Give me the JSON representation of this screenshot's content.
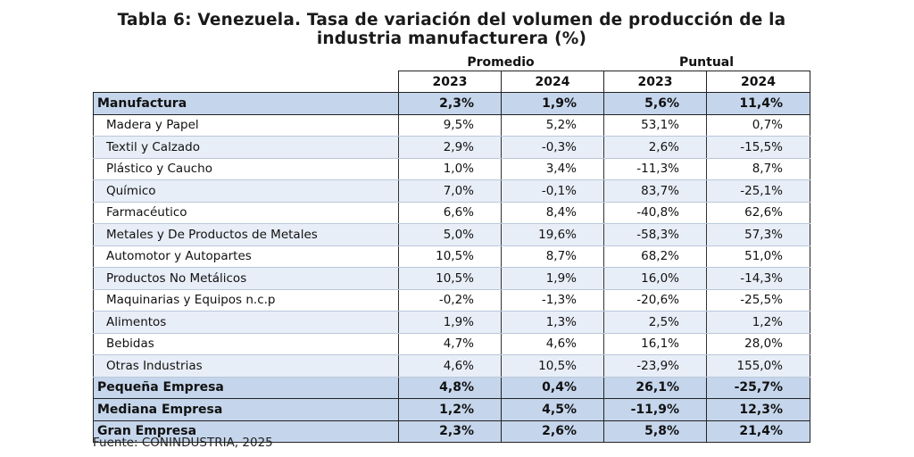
{
  "title_line1": "Tabla 6: Venezuela. Tasa de variación del volumen de producción de la",
  "title_line2": "industria manufacturera (%)",
  "groups": {
    "promedio": "Promedio",
    "puntual": "Puntual"
  },
  "years": [
    "2023",
    "2024",
    "2023",
    "2024"
  ],
  "rows": [
    {
      "type": "summary",
      "name": "Manufactura",
      "values": [
        "2,3%",
        "1,9%",
        "5,6%",
        "11,4%"
      ]
    },
    {
      "type": "sub",
      "name": "Madera y Papel",
      "values": [
        "9,5%",
        "5,2%",
        "53,1%",
        "0,7%"
      ]
    },
    {
      "type": "sub",
      "name": "Textil y Calzado",
      "values": [
        "2,9%",
        "-0,3%",
        "2,6%",
        "-15,5%"
      ]
    },
    {
      "type": "sub",
      "name": "Plástico y Caucho",
      "values": [
        "1,0%",
        "3,4%",
        "-11,3%",
        "8,7%"
      ]
    },
    {
      "type": "sub",
      "name": "Químico",
      "values": [
        "7,0%",
        "-0,1%",
        "83,7%",
        "-25,1%"
      ]
    },
    {
      "type": "sub",
      "name": "Farmacéutico",
      "values": [
        "6,6%",
        "8,4%",
        "-40,8%",
        "62,6%"
      ]
    },
    {
      "type": "sub",
      "name": "Metales y De Productos de Metales",
      "values": [
        "5,0%",
        "19,6%",
        "-58,3%",
        "57,3%"
      ]
    },
    {
      "type": "sub",
      "name": "Automotor y  Autopartes",
      "values": [
        "10,5%",
        "8,7%",
        "68,2%",
        "51,0%"
      ]
    },
    {
      "type": "sub",
      "name": "Productos No Metálicos",
      "values": [
        "10,5%",
        "1,9%",
        "16,0%",
        "-14,3%"
      ]
    },
    {
      "type": "sub",
      "name": "Maquinarias y Equipos n.c.p",
      "values": [
        "-0,2%",
        "-1,3%",
        "-20,6%",
        "-25,5%"
      ]
    },
    {
      "type": "sub",
      "name": "Alimentos",
      "values": [
        "1,9%",
        "1,3%",
        "2,5%",
        "1,2%"
      ]
    },
    {
      "type": "sub",
      "name": "Bebidas",
      "values": [
        "4,7%",
        "4,6%",
        "16,1%",
        "28,0%"
      ]
    },
    {
      "type": "sub",
      "name": "Otras Industrias",
      "values": [
        "4,6%",
        "10,5%",
        "-23,9%",
        "155,0%"
      ]
    },
    {
      "type": "summary",
      "name": "Pequeña Empresa",
      "values": [
        "4,8%",
        "0,4%",
        "26,1%",
        "-25,7%"
      ]
    },
    {
      "type": "summary",
      "name": "Mediana Empresa",
      "values": [
        "1,2%",
        "4,5%",
        "-11,9%",
        "12,3%"
      ]
    },
    {
      "type": "summary",
      "name": "Gran Empresa",
      "values": [
        "2,3%",
        "2,6%",
        "5,8%",
        "21,4%"
      ]
    }
  ],
  "source": "Fuente: CONINDUSTRIA, 2025"
}
